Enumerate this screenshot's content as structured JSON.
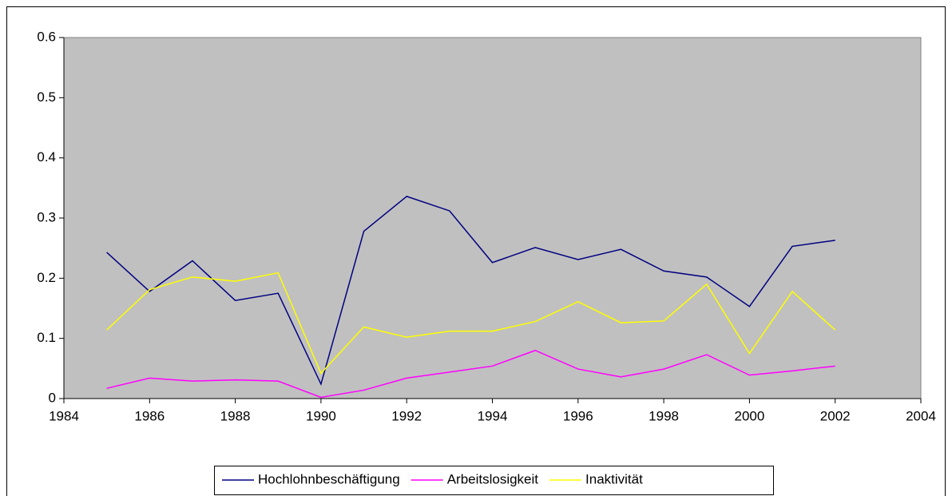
{
  "chart_data": {
    "type": "line",
    "x": [
      1985,
      1986,
      1987,
      1988,
      1989,
      1990,
      1991,
      1992,
      1993,
      1994,
      1995,
      1996,
      1997,
      1998,
      1999,
      2000,
      2001,
      2002
    ],
    "series": [
      {
        "name": "Hochlohnbeschäftigung",
        "color": "#000080",
        "values": [
          0.243,
          0.178,
          0.229,
          0.163,
          0.175,
          0.024,
          0.278,
          0.336,
          0.312,
          0.226,
          0.251,
          0.231,
          0.248,
          0.212,
          0.202,
          0.153,
          0.253,
          0.263
        ]
      },
      {
        "name": "Arbeitslosigkeit",
        "color": "#ff00ff",
        "values": [
          0.017,
          0.034,
          0.029,
          0.031,
          0.029,
          0.002,
          0.014,
          0.034,
          0.044,
          0.054,
          0.08,
          0.049,
          0.036,
          0.049,
          0.073,
          0.039,
          0.046,
          0.054
        ]
      },
      {
        "name": "Inaktivität",
        "color": "#ffff00",
        "values": [
          0.114,
          0.181,
          0.202,
          0.195,
          0.209,
          0.042,
          0.119,
          0.102,
          0.112,
          0.112,
          0.128,
          0.161,
          0.126,
          0.129,
          0.19,
          0.075,
          0.178,
          0.114
        ]
      }
    ],
    "xlim": [
      1984,
      2004
    ],
    "xticks": [
      1984,
      1986,
      1988,
      1990,
      1992,
      1994,
      1996,
      1998,
      2000,
      2002,
      2004
    ],
    "ylim": [
      0,
      0.6
    ],
    "yticks": [
      0,
      0.1,
      0.2,
      0.3,
      0.4,
      0.5,
      0.6
    ],
    "plot_background": "#c0c0c0",
    "legend": "bottom"
  }
}
